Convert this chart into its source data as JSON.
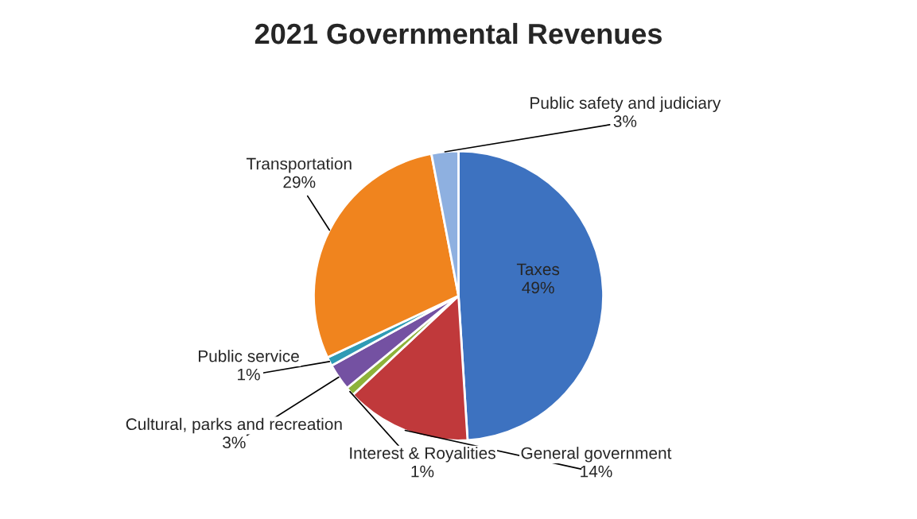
{
  "chart_data": {
    "type": "pie",
    "title": "2021 Governmental Revenues",
    "categories": [
      "Taxes",
      "General government",
      "Interest & Royalities",
      "Cultural, parks and recreation",
      "Public service",
      "Transportation",
      "Public safety and judiciary"
    ],
    "values": [
      49,
      14,
      1,
      3,
      1,
      29,
      3
    ],
    "colors": [
      "#3d72c0",
      "#c0393b",
      "#8db33a",
      "#7451a2",
      "#2f9bb5",
      "#f0841e",
      "#8eb0e0"
    ],
    "value_labels": [
      "49%",
      "14%",
      "1%",
      "3%",
      "1%",
      "29%",
      "3%"
    ]
  }
}
